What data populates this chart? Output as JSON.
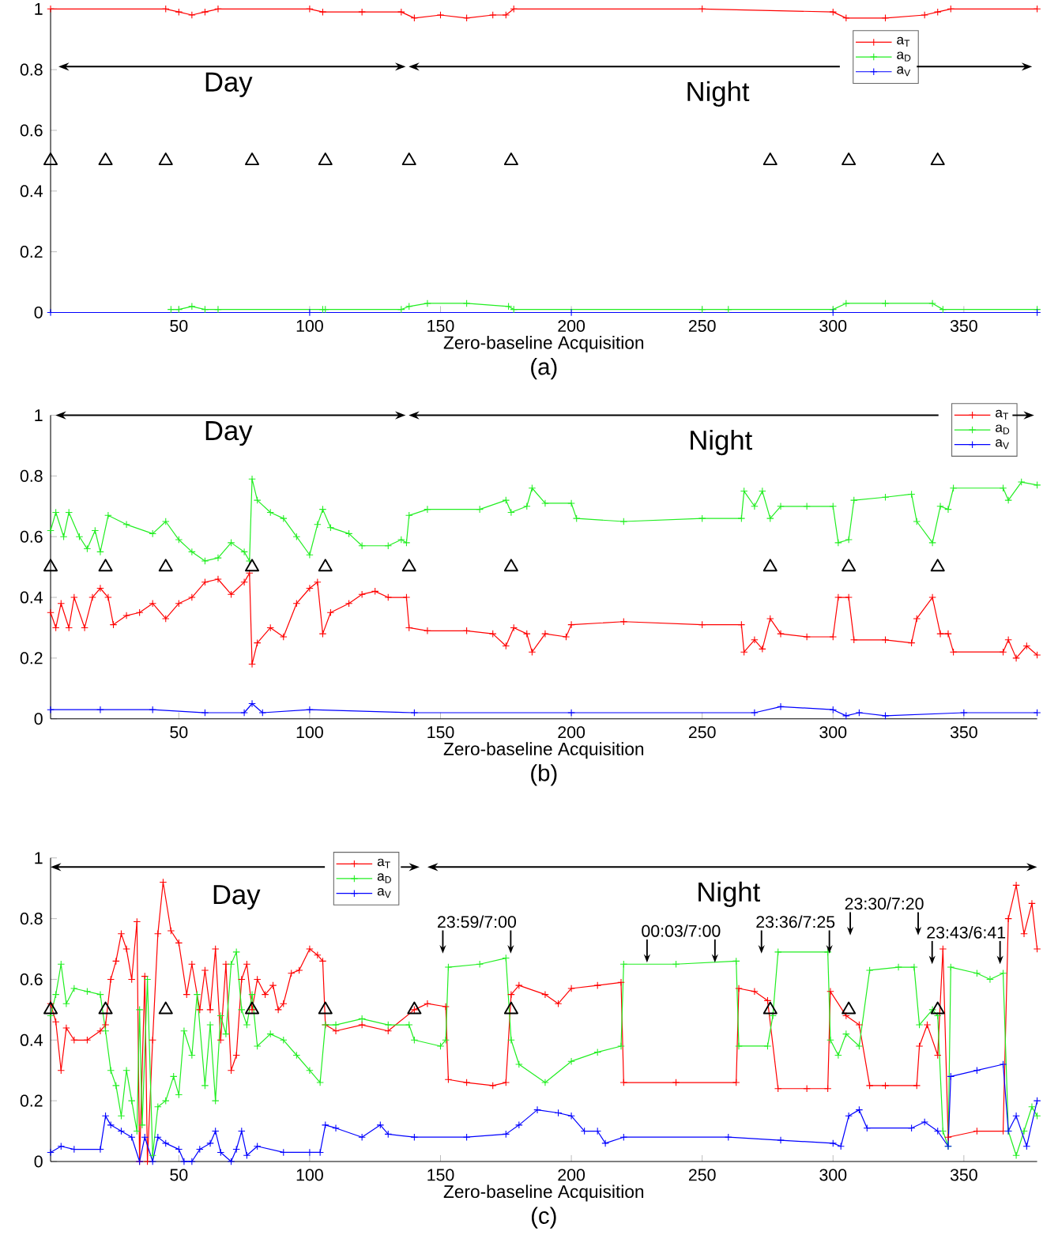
{
  "chart_data": [
    {
      "type": "line",
      "title": "(a)",
      "xlabel": "Zero-baseline Acquisition",
      "xlim": [
        1,
        378
      ],
      "ylim": [
        0,
        1
      ],
      "xticks": [
        50,
        100,
        150,
        200,
        250,
        300,
        350
      ],
      "yticks": [
        0,
        0.2,
        0.4,
        0.6,
        0.8,
        1
      ],
      "marker": "cross",
      "legend": "top right",
      "annotations": [
        "Day",
        "Night"
      ],
      "series": [
        {
          "name": "a$_{T}$",
          "color": "#ff0000",
          "x": [
            1,
            45,
            50,
            55,
            60,
            65,
            100,
            105,
            120,
            135,
            140,
            150,
            160,
            170,
            175,
            178,
            250,
            300,
            305,
            320,
            335,
            340,
            345,
            378
          ],
          "values": [
            1.0,
            1.0,
            0.99,
            0.98,
            0.99,
            1.0,
            1.0,
            0.99,
            0.99,
            0.99,
            0.97,
            0.98,
            0.97,
            0.98,
            0.98,
            1.0,
            1.0,
            0.99,
            0.97,
            0.97,
            0.98,
            0.99,
            1.0,
            1.0
          ]
        },
        {
          "name": "a$_{D}$",
          "color": "#22ee22",
          "x": [
            47,
            50,
            55,
            60,
            65,
            105,
            106,
            135,
            138,
            145,
            160,
            176,
            178,
            250,
            260,
            300,
            305,
            320,
            338,
            342,
            378
          ],
          "values": [
            0.01,
            0.01,
            0.02,
            0.01,
            0.01,
            0.01,
            0.01,
            0.01,
            0.02,
            0.03,
            0.03,
            0.02,
            0.01,
            0.01,
            0.01,
            0.01,
            0.03,
            0.03,
            0.03,
            0.01,
            0.01
          ]
        },
        {
          "name": "a$_{V}$",
          "color": "#0000ff",
          "x": [
            1,
            100,
            200,
            300,
            378
          ],
          "values": [
            0,
            0,
            0,
            0,
            0
          ]
        },
        {
          "type": "scatter",
          "color": "#000000",
          "marker": "triangle",
          "x": [
            1,
            22,
            45,
            78,
            106,
            138,
            177,
            276,
            306,
            340
          ],
          "values": [
            0.5,
            0.5,
            0.5,
            0.5,
            0.5,
            0.5,
            0.5,
            0.5,
            0.5,
            0.5
          ]
        }
      ]
    },
    {
      "type": "line",
      "title": "(b)",
      "xlabel": "Zero-baseline Acquisition",
      "xlim": [
        1,
        378
      ],
      "ylim": [
        0,
        1
      ],
      "xticks": [
        50,
        100,
        150,
        200,
        250,
        300,
        350
      ],
      "yticks": [
        0,
        0.2,
        0.4,
        0.6,
        0.8,
        1
      ],
      "marker": "cross",
      "legend": "top right",
      "annotations": [
        "Day",
        "Night"
      ],
      "series": [
        {
          "name": "a$_{T}$",
          "color": "#ff0000",
          "x": [
            1,
            3,
            5,
            8,
            10,
            14,
            17,
            20,
            23,
            25,
            30,
            35,
            40,
            45,
            50,
            55,
            60,
            65,
            70,
            75,
            77,
            78,
            80,
            85,
            90,
            95,
            100,
            103,
            105,
            108,
            115,
            120,
            125,
            130,
            137,
            138,
            145,
            160,
            170,
            175,
            178,
            183,
            185,
            190,
            198,
            200,
            220,
            250,
            265,
            266,
            270,
            273,
            276,
            280,
            290,
            300,
            302,
            306,
            308,
            320,
            330,
            332,
            338,
            341,
            344,
            346,
            365,
            367,
            370,
            374,
            378
          ],
          "values": [
            0.35,
            0.3,
            0.38,
            0.3,
            0.4,
            0.3,
            0.4,
            0.43,
            0.4,
            0.31,
            0.34,
            0.35,
            0.38,
            0.33,
            0.38,
            0.4,
            0.45,
            0.46,
            0.41,
            0.45,
            0.48,
            0.18,
            0.25,
            0.3,
            0.27,
            0.38,
            0.43,
            0.45,
            0.28,
            0.35,
            0.38,
            0.41,
            0.42,
            0.4,
            0.4,
            0.3,
            0.29,
            0.29,
            0.28,
            0.24,
            0.3,
            0.28,
            0.22,
            0.28,
            0.27,
            0.31,
            0.32,
            0.31,
            0.31,
            0.22,
            0.26,
            0.23,
            0.33,
            0.28,
            0.27,
            0.27,
            0.4,
            0.4,
            0.26,
            0.26,
            0.25,
            0.33,
            0.4,
            0.28,
            0.28,
            0.22,
            0.22,
            0.26,
            0.2,
            0.24,
            0.21
          ]
        },
        {
          "name": "a$_{D}$",
          "color": "#22ee22",
          "x": [
            1,
            3,
            6,
            8,
            12,
            15,
            18,
            20,
            23,
            30,
            40,
            45,
            50,
            55,
            60,
            65,
            70,
            75,
            77,
            78,
            80,
            85,
            90,
            95,
            100,
            103,
            105,
            108,
            115,
            120,
            130,
            135,
            137,
            138,
            145,
            165,
            175,
            177,
            183,
            185,
            190,
            200,
            202,
            220,
            250,
            265,
            266,
            270,
            273,
            276,
            280,
            290,
            300,
            302,
            306,
            308,
            320,
            330,
            332,
            338,
            341,
            344,
            346,
            365,
            367,
            372,
            378
          ],
          "values": [
            0.62,
            0.68,
            0.6,
            0.68,
            0.6,
            0.56,
            0.62,
            0.55,
            0.67,
            0.64,
            0.61,
            0.65,
            0.59,
            0.55,
            0.52,
            0.53,
            0.58,
            0.55,
            0.52,
            0.79,
            0.72,
            0.68,
            0.66,
            0.6,
            0.54,
            0.64,
            0.69,
            0.63,
            0.61,
            0.57,
            0.57,
            0.59,
            0.58,
            0.67,
            0.69,
            0.69,
            0.72,
            0.68,
            0.7,
            0.76,
            0.71,
            0.71,
            0.66,
            0.65,
            0.66,
            0.66,
            0.75,
            0.7,
            0.75,
            0.66,
            0.7,
            0.7,
            0.7,
            0.58,
            0.59,
            0.72,
            0.73,
            0.74,
            0.65,
            0.58,
            0.7,
            0.69,
            0.76,
            0.76,
            0.72,
            0.78,
            0.77
          ]
        },
        {
          "name": "a$_{V}$",
          "color": "#0000ff",
          "x": [
            1,
            20,
            40,
            60,
            75,
            78,
            82,
            100,
            140,
            200,
            270,
            280,
            300,
            305,
            310,
            320,
            350,
            378
          ],
          "values": [
            0.03,
            0.03,
            0.03,
            0.02,
            0.02,
            0.05,
            0.02,
            0.03,
            0.02,
            0.02,
            0.02,
            0.04,
            0.03,
            0.01,
            0.02,
            0.01,
            0.02,
            0.02
          ]
        },
        {
          "type": "scatter",
          "color": "#000000",
          "marker": "triangle",
          "x": [
            1,
            22,
            45,
            78,
            106,
            138,
            177,
            276,
            306,
            340
          ],
          "values": [
            0.5,
            0.5,
            0.5,
            0.5,
            0.5,
            0.5,
            0.5,
            0.5,
            0.5,
            0.5
          ]
        }
      ]
    },
    {
      "type": "line",
      "title": "(c)",
      "xlabel": "Zero-baseline Acquisition",
      "xlim": [
        1,
        378
      ],
      "ylim": [
        0,
        1
      ],
      "xticks": [
        50,
        100,
        150,
        200,
        250,
        300,
        350
      ],
      "yticks": [
        0,
        0.2,
        0.4,
        0.6,
        0.8,
        1
      ],
      "marker": "cross",
      "legend": "top",
      "annotations": [
        "Day",
        "Night",
        "23:59/7:00",
        "00:03/7:00",
        "23:36/7:25",
        "23:30/7:20",
        "23:43/6:41"
      ],
      "series": [
        {
          "name": "a$_{T}$",
          "color": "#ff0000",
          "x": [
            1,
            3,
            5,
            7,
            10,
            15,
            20,
            22,
            24,
            26,
            28,
            30,
            32,
            34,
            35,
            37,
            38,
            40,
            42,
            44,
            47,
            50,
            53,
            55,
            58,
            60,
            62,
            64,
            66,
            68,
            70,
            72,
            74,
            76,
            78,
            80,
            83,
            86,
            88,
            90,
            93,
            96,
            100,
            103,
            105,
            106,
            110,
            120,
            130,
            140,
            145,
            152,
            153,
            160,
            170,
            175,
            177,
            180,
            190,
            195,
            200,
            210,
            219,
            220,
            240,
            263,
            264,
            270,
            275,
            279,
            290,
            298,
            299,
            305,
            310,
            314,
            320,
            332,
            333,
            336,
            340,
            342,
            344,
            355,
            365,
            367,
            370,
            373,
            376,
            378
          ],
          "values": [
            0.52,
            0.46,
            0.3,
            0.44,
            0.4,
            0.4,
            0.43,
            0.45,
            0.6,
            0.66,
            0.75,
            0.7,
            0.6,
            0.79,
            0.0,
            0.61,
            0.0,
            0.4,
            0.75,
            0.92,
            0.76,
            0.72,
            0.55,
            0.65,
            0.5,
            0.63,
            0.5,
            0.7,
            0.4,
            0.65,
            0.3,
            0.35,
            0.6,
            0.65,
            0.5,
            0.6,
            0.55,
            0.58,
            0.5,
            0.52,
            0.62,
            0.63,
            0.7,
            0.68,
            0.66,
            0.45,
            0.43,
            0.45,
            0.43,
            0.5,
            0.52,
            0.51,
            0.27,
            0.26,
            0.25,
            0.26,
            0.55,
            0.58,
            0.55,
            0.52,
            0.57,
            0.58,
            0.59,
            0.26,
            0.26,
            0.26,
            0.57,
            0.56,
            0.53,
            0.24,
            0.24,
            0.24,
            0.56,
            0.48,
            0.45,
            0.25,
            0.25,
            0.25,
            0.38,
            0.45,
            0.35,
            0.7,
            0.08,
            0.1,
            0.1,
            0.8,
            0.91,
            0.75,
            0.85,
            0.7
          ]
        },
        {
          "name": "a$_{D}$",
          "color": "#22ee22",
          "x": [
            1,
            3,
            5,
            7,
            10,
            15,
            20,
            22,
            24,
            26,
            28,
            30,
            32,
            34,
            35,
            36,
            38,
            40,
            42,
            45,
            48,
            50,
            52,
            55,
            57,
            60,
            62,
            64,
            66,
            68,
            70,
            72,
            74,
            76,
            78,
            80,
            85,
            90,
            95,
            100,
            104,
            106,
            110,
            120,
            130,
            138,
            140,
            150,
            152,
            153,
            165,
            175,
            177,
            180,
            190,
            200,
            210,
            219,
            220,
            240,
            263,
            264,
            275,
            277,
            279,
            298,
            299,
            302,
            305,
            310,
            314,
            325,
            331,
            333,
            338,
            340,
            342,
            344,
            345,
            355,
            360,
            365,
            367,
            370,
            373,
            376,
            378
          ],
          "values": [
            0.48,
            0.55,
            0.65,
            0.52,
            0.57,
            0.56,
            0.55,
            0.43,
            0.3,
            0.25,
            0.15,
            0.3,
            0.2,
            0.1,
            0.5,
            0.12,
            0.6,
            0.02,
            0.18,
            0.2,
            0.28,
            0.22,
            0.43,
            0.35,
            0.55,
            0.25,
            0.45,
            0.2,
            0.48,
            0.42,
            0.65,
            0.69,
            0.5,
            0.45,
            0.55,
            0.38,
            0.42,
            0.4,
            0.35,
            0.3,
            0.26,
            0.45,
            0.45,
            0.47,
            0.45,
            0.45,
            0.4,
            0.38,
            0.4,
            0.64,
            0.65,
            0.67,
            0.4,
            0.32,
            0.26,
            0.33,
            0.36,
            0.38,
            0.65,
            0.65,
            0.66,
            0.38,
            0.38,
            0.48,
            0.69,
            0.69,
            0.4,
            0.35,
            0.42,
            0.38,
            0.63,
            0.64,
            0.64,
            0.45,
            0.5,
            0.48,
            0.1,
            0.05,
            0.64,
            0.62,
            0.6,
            0.62,
            0.1,
            0.02,
            0.1,
            0.18,
            0.15
          ]
        },
        {
          "name": "a$_{V}$",
          "color": "#0000ff",
          "x": [
            1,
            5,
            10,
            20,
            22,
            24,
            28,
            32,
            35,
            37,
            40,
            42,
            45,
            50,
            52,
            55,
            58,
            62,
            64,
            66,
            70,
            72,
            74,
            76,
            80,
            90,
            100,
            104,
            106,
            110,
            120,
            127,
            130,
            140,
            160,
            175,
            180,
            187,
            195,
            200,
            205,
            210,
            213,
            220,
            260,
            280,
            300,
            303,
            306,
            310,
            313,
            330,
            335,
            340,
            344,
            345,
            355,
            365,
            367,
            370,
            374,
            378
          ],
          "values": [
            0.03,
            0.05,
            0.04,
            0.04,
            0.15,
            0.12,
            0.1,
            0.08,
            0.0,
            0.08,
            0.0,
            0.08,
            0.06,
            0.04,
            0.0,
            0.0,
            0.04,
            0.06,
            0.1,
            0.03,
            0.0,
            0.04,
            0.1,
            0.02,
            0.05,
            0.03,
            0.03,
            0.03,
            0.12,
            0.11,
            0.08,
            0.12,
            0.09,
            0.08,
            0.08,
            0.09,
            0.12,
            0.17,
            0.16,
            0.15,
            0.1,
            0.1,
            0.06,
            0.08,
            0.08,
            0.07,
            0.06,
            0.05,
            0.15,
            0.17,
            0.11,
            0.11,
            0.13,
            0.1,
            0.05,
            0.28,
            0.3,
            0.32,
            0.1,
            0.15,
            0.05,
            0.2
          ]
        },
        {
          "type": "scatter",
          "color": "#000000",
          "marker": "triangle",
          "x": [
            1,
            22,
            45,
            78,
            106,
            140,
            177,
            276,
            306,
            340
          ],
          "values": [
            0.5,
            0.5,
            0.5,
            0.5,
            0.5,
            0.5,
            0.5,
            0.5,
            0.5,
            0.5
          ]
        }
      ]
    }
  ]
}
